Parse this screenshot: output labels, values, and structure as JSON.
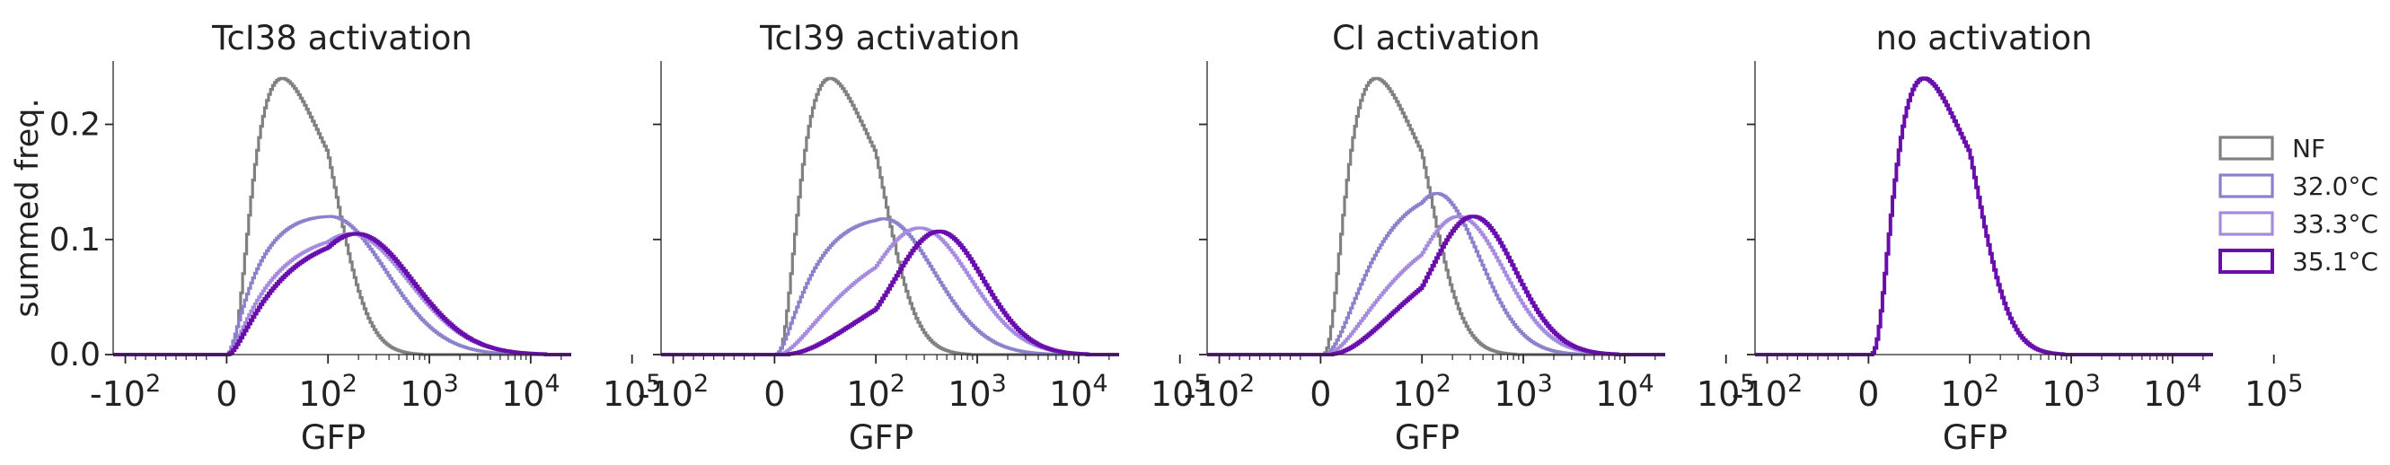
{
  "chart_data": [
    {
      "type": "histogram-step",
      "title": "TcI38 activation",
      "xlabel": "GFP",
      "ylabel": "summed freq.",
      "ylim": [
        0,
        0.255
      ],
      "yticks": [
        "0.0",
        "0.1",
        "0.2"
      ],
      "xscale": "symlog",
      "xticks": [
        "-10^2",
        "0",
        "10^2",
        "10^3",
        "10^4",
        "10^5"
      ],
      "show_y_tick_labels": true,
      "series": [
        {
          "name": "NF",
          "color": "#808080",
          "peak_x": 55,
          "peak_y": 0.24,
          "width": 0.33
        },
        {
          "name": "32.0°C",
          "color": "#8b80cc",
          "peak_x": 105,
          "peak_y": 0.12,
          "width": 0.55
        },
        {
          "name": "33.3°C",
          "color": "#a58be0",
          "peak_x": 165,
          "peak_y": 0.105,
          "width": 0.58
        },
        {
          "name": "35.1°C",
          "color": "#6a0dad",
          "peak_x": 190,
          "peak_y": 0.105,
          "width": 0.56
        }
      ]
    },
    {
      "type": "histogram-step",
      "title": "TcI39 activation",
      "xlabel": "GFP",
      "ylim": [
        0,
        0.255
      ],
      "yticks": [
        "0.0",
        "0.1",
        "0.2"
      ],
      "xscale": "symlog",
      "xticks": [
        "-10^2",
        "0",
        "10^2",
        "10^3",
        "10^4",
        "10^5"
      ],
      "show_y_tick_labels": false,
      "series": [
        {
          "name": "NF",
          "color": "#808080",
          "peak_x": 55,
          "peak_y": 0.24,
          "width": 0.33
        },
        {
          "name": "32.0°C",
          "color": "#8b80cc",
          "peak_x": 120,
          "peak_y": 0.118,
          "width": 0.5
        },
        {
          "name": "33.3°C",
          "color": "#a58be0",
          "peak_x": 270,
          "peak_y": 0.11,
          "width": 0.5
        },
        {
          "name": "35.1°C",
          "color": "#6a0dad",
          "peak_x": 420,
          "peak_y": 0.107,
          "width": 0.44
        }
      ]
    },
    {
      "type": "histogram-step",
      "title": "CI activation",
      "xlabel": "GFP",
      "ylim": [
        0,
        0.255
      ],
      "yticks": [
        "0.0",
        "0.1",
        "0.2"
      ],
      "xscale": "symlog",
      "xticks": [
        "-10^2",
        "0",
        "10^2",
        "10^3",
        "10^4",
        "10^5"
      ],
      "show_y_tick_labels": false,
      "series": [
        {
          "name": "NF",
          "color": "#808080",
          "peak_x": 55,
          "peak_y": 0.24,
          "width": 0.33
        },
        {
          "name": "32.0°C",
          "color": "#8b80cc",
          "peak_x": 140,
          "peak_y": 0.14,
          "width": 0.42
        },
        {
          "name": "33.3°C",
          "color": "#a58be0",
          "peak_x": 230,
          "peak_y": 0.12,
          "width": 0.45
        },
        {
          "name": "35.1°C",
          "color": "#6a0dad",
          "peak_x": 320,
          "peak_y": 0.12,
          "width": 0.42
        }
      ]
    },
    {
      "type": "histogram-step",
      "title": "no activation",
      "xlabel": "GFP",
      "ylim": [
        0,
        0.255
      ],
      "yticks": [
        "0.0",
        "0.1",
        "0.2"
      ],
      "xscale": "symlog",
      "xticks": [
        "-10^2",
        "0",
        "10^2",
        "10^3",
        "10^4",
        "10^5"
      ],
      "show_y_tick_labels": false,
      "series": [
        {
          "name": "NF",
          "color": "#808080",
          "peak_x": 55,
          "peak_y": 0.24,
          "width": 0.33
        },
        {
          "name": "32.0°C",
          "color": "#8b80cc",
          "peak_x": 55,
          "peak_y": 0.24,
          "width": 0.33
        },
        {
          "name": "33.3°C",
          "color": "#a58be0",
          "peak_x": 55,
          "peak_y": 0.24,
          "width": 0.33
        },
        {
          "name": "35.1°C",
          "color": "#6a0dad",
          "peak_x": 55,
          "peak_y": 0.24,
          "width": 0.33
        }
      ]
    }
  ],
  "legend": {
    "placement": "right",
    "entries": [
      {
        "label": "NF",
        "color": "#808080"
      },
      {
        "label": "32.0°C",
        "color": "#8b80cc"
      },
      {
        "label": "33.3°C",
        "color": "#a58be0"
      },
      {
        "label": "35.1°C",
        "color": "#6a0dad"
      }
    ]
  }
}
